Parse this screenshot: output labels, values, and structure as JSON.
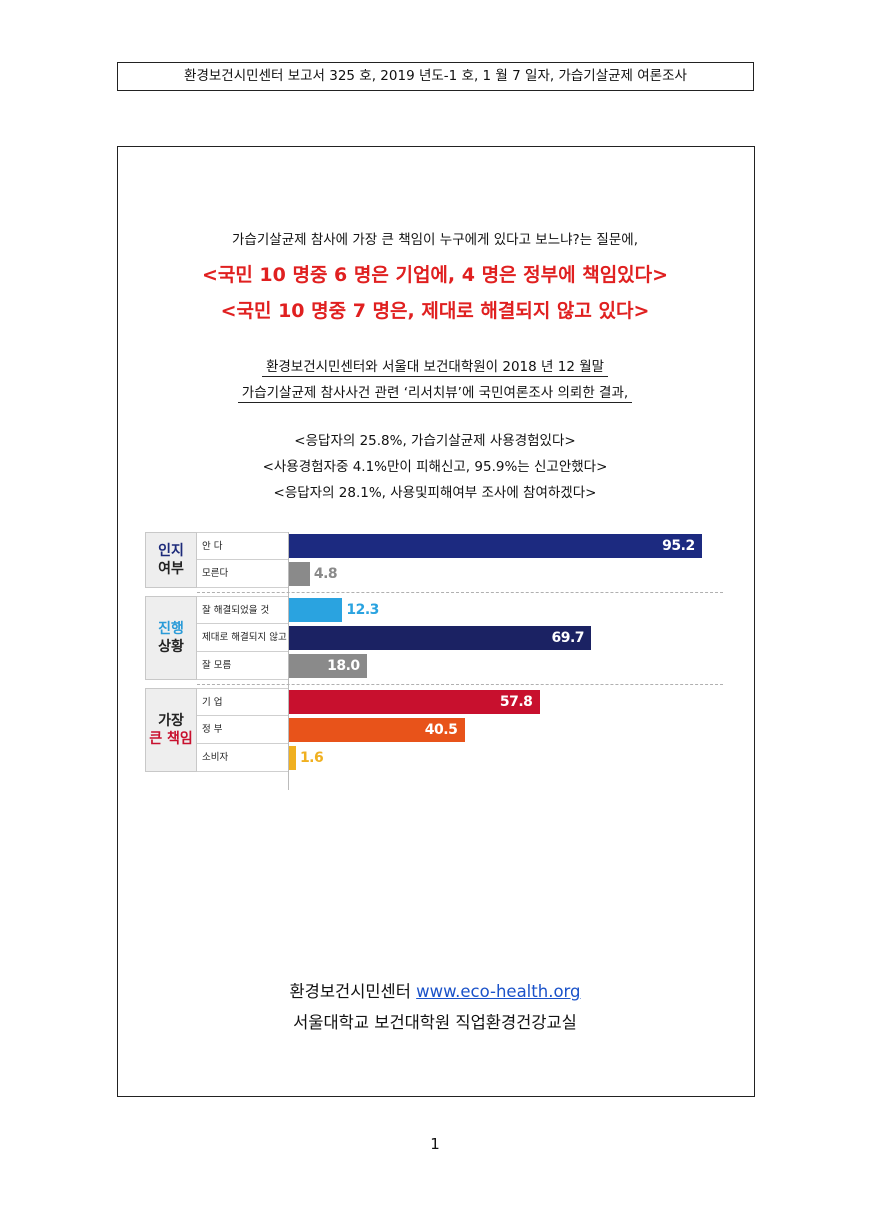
{
  "header": "환경보건시민센터 보고서 325 호, 2019 년도-1 호, 1 월 7 일자, 가습기살균제 여론조사",
  "intro": "가습기살균제 참사에 가장 큰 책임이 누구에게 있다고 보느냐?는 질문에,",
  "headlines": [
    "<국민 10 명중 6 명은 기업에, 4 명은 정부에 책임있다>",
    "<국민 10 명중 7 명은, 제대로 해결되지 않고 있다>"
  ],
  "survey_lines": [
    "환경보건시민센터와 서울대 보건대학원이 2018 년 12 월말",
    "가습기살균제 참사사건 관련 ‘리서치뷰’에 국민여론조사 의뢰한 결과,"
  ],
  "findings": [
    "<응답자의 25.8%, 가습기살균제 사용경험있다>",
    "<사용경험자중 4.1%만이 피해신고, 95.9%는 신고안했다>",
    "<응답자의 28.1%, 사용및피해여부 조사에 참여하겠다>"
  ],
  "chart_data": {
    "type": "bar",
    "orientation": "horizontal",
    "xlim": [
      0,
      100
    ],
    "grid": false,
    "groups": [
      {
        "title_lines": [
          "인지",
          "여부"
        ],
        "title_colors": [
          "#1c2a7a",
          "#222222"
        ],
        "items": [
          {
            "label": "안 다",
            "value": 95.2,
            "display": "95.2",
            "color": "#1c2a80"
          },
          {
            "label": "모른다",
            "value": 4.8,
            "display": "4.8",
            "color": "#8a8a8a"
          }
        ]
      },
      {
        "title_lines": [
          "진행",
          "상황"
        ],
        "title_colors": [
          "#2a9bd8",
          "#222222"
        ],
        "items": [
          {
            "label": "잘 해결되었을 것",
            "value": 12.3,
            "display": "12.3",
            "color": "#2aa3e0"
          },
          {
            "label": "제대로 해결되지 않고 있다",
            "value": 69.7,
            "display": "69.7",
            "color": "#1b2263"
          },
          {
            "label": "잘 모름",
            "value": 18.0,
            "display": "18.0",
            "color": "#8a8a8a"
          }
        ]
      },
      {
        "title_lines": [
          "가장",
          "큰 책임"
        ],
        "title_colors": [
          "#222222",
          "#c8102e"
        ],
        "items": [
          {
            "label": "기 업",
            "value": 57.8,
            "display": "57.8",
            "color": "#c8102e"
          },
          {
            "label": "정 부",
            "value": 40.5,
            "display": "40.5",
            "color": "#e8531a"
          },
          {
            "label": "소비자",
            "value": 1.6,
            "display": "1.6",
            "color": "#f0b020"
          }
        ]
      }
    ]
  },
  "footer": {
    "org": "환경보건시민센터",
    "url": "www.eco-health.org",
    "line2": "서울대학교 보건대학원 직업환경건강교실"
  },
  "page_number": "1"
}
